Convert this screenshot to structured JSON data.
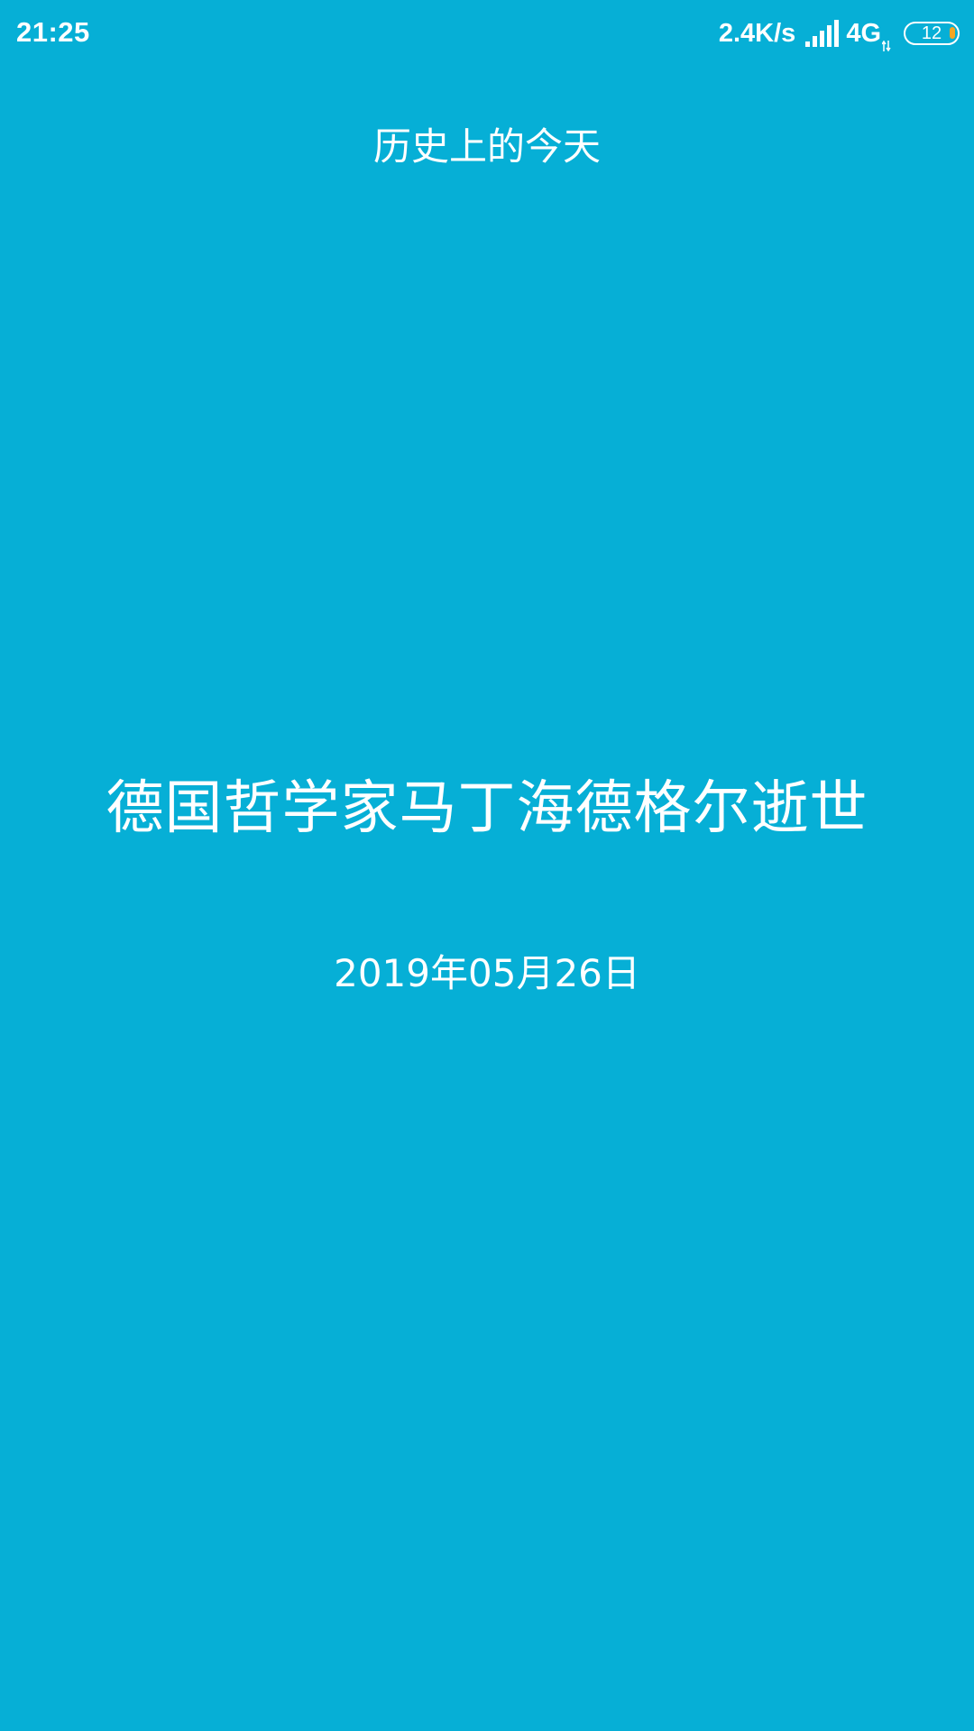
{
  "status_bar": {
    "time": "21:25",
    "net_speed": "2.4K/s",
    "signal_icon": "signal-bars-icon",
    "network_type": "4G",
    "data_icon": "data-arrows-icon",
    "battery_level": "12",
    "battery_color": "#F5A623"
  },
  "page": {
    "heading": "历史上的今天",
    "event": "德国哲学家马丁海德格尔逝世",
    "date": "2019年05月26日",
    "background_color": "#06AFD6"
  }
}
